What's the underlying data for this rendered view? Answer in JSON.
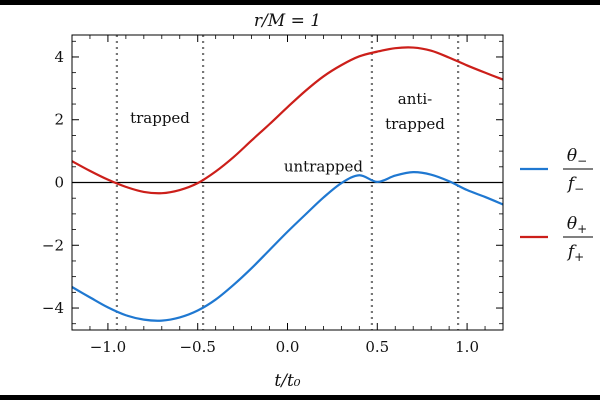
{
  "chart_data": {
    "type": "line",
    "title": "r/M = 1",
    "xlabel": "t/t₀",
    "ylabel": "",
    "xlim": [
      -1.2,
      1.2
    ],
    "ylim": [
      -4.7,
      4.7
    ],
    "xticks": [
      -1.0,
      -0.5,
      0.0,
      0.5,
      1.0
    ],
    "xtick_labels": [
      "−1.0",
      "−0.5",
      "0.0",
      "0.5",
      "1.0"
    ],
    "yticks": [
      -4,
      -2,
      0,
      2,
      4
    ],
    "ytick_labels": [
      "−4",
      "−2",
      "0",
      "2",
      "4"
    ],
    "grid": false,
    "legend_position": "right",
    "series": [
      {
        "name": "θ₋/f₋",
        "legend_num": "θ",
        "legend_num_sub": "−",
        "legend_den": "f",
        "legend_den_sub": "−",
        "color": "#1f78d1",
        "x": [
          -1.2,
          -1.1,
          -1.0,
          -0.9,
          -0.8,
          -0.7,
          -0.6,
          -0.5,
          -0.4,
          -0.3,
          -0.2,
          -0.1,
          0.0,
          0.1,
          0.2,
          0.3,
          0.4,
          0.5,
          0.6,
          0.7,
          0.8,
          0.9,
          1.0,
          1.1,
          1.2
        ],
        "y": [
          -3.33,
          -3.66,
          -3.98,
          -4.23,
          -4.37,
          -4.4,
          -4.3,
          -4.08,
          -3.73,
          -3.26,
          -2.73,
          -2.15,
          -1.57,
          -1.02,
          -0.48,
          -0.02,
          0.23,
          0.02,
          0.22,
          0.33,
          0.25,
          0.04,
          -0.24,
          -0.46,
          -0.7
        ]
      },
      {
        "name": "θ₊/f₊",
        "legend_num": "θ",
        "legend_num_sub": "+",
        "legend_den": "f",
        "legend_den_sub": "+",
        "color": "#cc1f1a",
        "x": [
          -1.2,
          -1.1,
          -1.0,
          -0.9,
          -0.8,
          -0.7,
          -0.6,
          -0.5,
          -0.4,
          -0.3,
          -0.2,
          -0.1,
          0.0,
          0.1,
          0.2,
          0.3,
          0.4,
          0.5,
          0.6,
          0.7,
          0.8,
          0.9,
          1.0,
          1.1,
          1.2
        ],
        "y": [
          0.68,
          0.37,
          0.09,
          -0.14,
          -0.3,
          -0.34,
          -0.24,
          -0.02,
          0.35,
          0.81,
          1.34,
          1.86,
          2.4,
          2.92,
          3.38,
          3.74,
          4.02,
          4.17,
          4.28,
          4.3,
          4.2,
          3.98,
          3.73,
          3.5,
          3.28
        ]
      }
    ],
    "reference_lines": {
      "horizontal_y": 0,
      "vertical_dotted_x": [
        -0.95,
        -0.47,
        0.47,
        0.95
      ]
    },
    "annotations": [
      {
        "text": "trapped",
        "x": -0.71,
        "y": 1.9
      },
      {
        "text": "untrapped",
        "x": 0.2,
        "y": 0.35
      },
      {
        "text": "anti-",
        "x": 0.71,
        "y": 2.5
      },
      {
        "text": "trapped",
        "x": 0.71,
        "y": 1.7
      }
    ]
  }
}
